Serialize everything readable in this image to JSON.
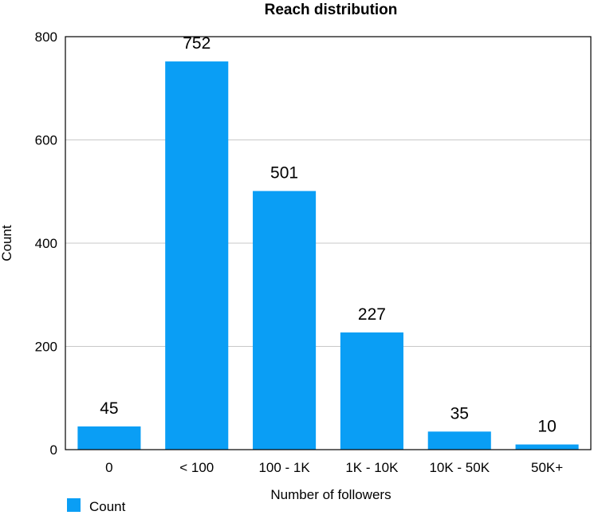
{
  "chart_data": {
    "type": "bar",
    "title": "Reach distribution",
    "xlabel": "Number of followers",
    "ylabel": "Count",
    "categories": [
      "0",
      "< 100",
      "100 - 1K",
      "1K - 10K",
      "10K - 50K",
      "50K+"
    ],
    "series": [
      {
        "name": "Count",
        "values": [
          45,
          752,
          501,
          227,
          35,
          10
        ],
        "color": "#0a9ef5"
      }
    ],
    "ylim": [
      0,
      800
    ],
    "yticks": [
      0,
      200,
      400,
      600,
      800
    ],
    "grid": true,
    "legend": "bottom-left",
    "colors": {
      "bar": "#0a9ef5",
      "grid": "#c8c8c8",
      "frame": "#000000"
    }
  }
}
